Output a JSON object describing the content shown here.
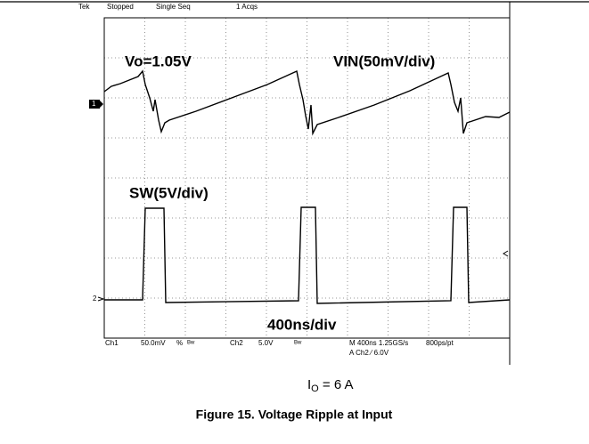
{
  "header": {
    "brand": "Tek",
    "state": "Stopped",
    "mode": "Single Seq",
    "acqs": "1 Acqs"
  },
  "labels": {
    "vo": "Vo=1.05V",
    "vin": "VIN(50mV/div)",
    "sw": "SW(5V/div)",
    "time": "400ns/div"
  },
  "markers": {
    "ch1": "1",
    "ch2": "2"
  },
  "status": {
    "ch1": "Ch1",
    "ch1_scale": "50.0mV",
    "ch1_coupling": "%",
    "ch1_bw": "Bw",
    "ch2": "Ch2",
    "ch2_scale": "5.0V",
    "ch2_bw": "Bw",
    "timebase": "M 400ns 1.25GS/s",
    "resolution": "800ps/pt",
    "trigger": "A Ch2 ⁄ 6.0V"
  },
  "condition": {
    "main": "I",
    "sub": "O",
    "rest": " = 6 A"
  },
  "caption": "Figure 15. Voltage Ripple at Input"
}
